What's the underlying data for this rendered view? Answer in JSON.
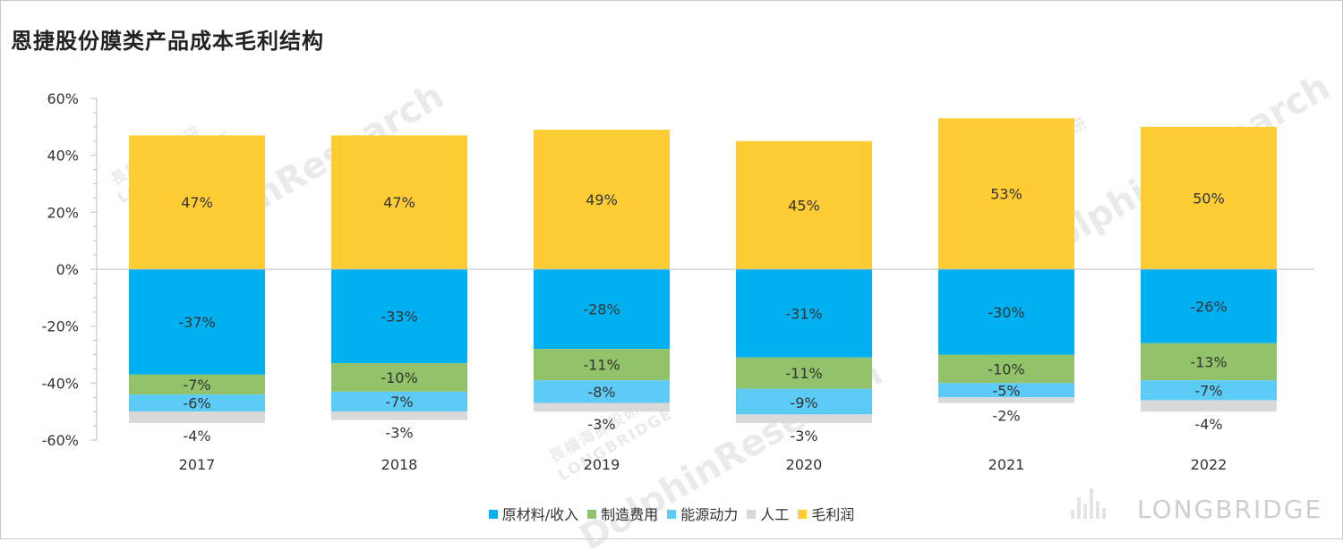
{
  "title": "恩捷股份膜类产品成本毛利结构",
  "watermark": {
    "cn": "長橋海豚投研",
    "en_small": "LONGBRIDGE",
    "en_big": "DolphinResearch",
    "brand": "LONGBRIDGE"
  },
  "chart_data": {
    "type": "bar",
    "stacked": true,
    "title": "恩捷股份膜类产品成本毛利结构",
    "categories": [
      "2017",
      "2018",
      "2019",
      "2020",
      "2021",
      "2022"
    ],
    "ylim": [
      -60,
      60
    ],
    "yticks": [
      60,
      40,
      20,
      0,
      -20,
      -40,
      -60
    ],
    "ytick_labels": [
      "60%",
      "40%",
      "20%",
      "0%",
      "-20%",
      "-40%",
      "-60%"
    ],
    "legend_position": "bottom",
    "series": [
      {
        "name": "原材料/收入",
        "color": "#00b0f0",
        "values": [
          -37,
          -33,
          -28,
          -31,
          -30,
          -26
        ],
        "labels": [
          "-37%",
          "-33%",
          "-28%",
          "-31%",
          "-30%",
          "-26%"
        ]
      },
      {
        "name": "制造费用",
        "color": "#92c36a",
        "values": [
          -7,
          -10,
          -11,
          -11,
          -10,
          -13
        ],
        "labels": [
          "-7%",
          "-10%",
          "-11%",
          "-11%",
          "-10%",
          "-13%"
        ]
      },
      {
        "name": "能源动力",
        "color": "#5ccbf5",
        "values": [
          -6,
          -7,
          -8,
          -9,
          -5,
          -7
        ],
        "labels": [
          "-6%",
          "-7%",
          "-8%",
          "-9%",
          "-5%",
          "-7%"
        ]
      },
      {
        "name": "人工",
        "color": "#d9d9d9",
        "values": [
          -4,
          -3,
          -3,
          -3,
          -2,
          -4
        ],
        "labels": [
          "-4%",
          "-3%",
          "-3%",
          "-3%",
          "-2%",
          "-4%"
        ]
      },
      {
        "name": "毛利润",
        "color": "#ffcc33",
        "values": [
          47,
          47,
          49,
          45,
          53,
          50
        ],
        "labels": [
          "47%",
          "47%",
          "49%",
          "45%",
          "53%",
          "50%"
        ]
      }
    ]
  }
}
